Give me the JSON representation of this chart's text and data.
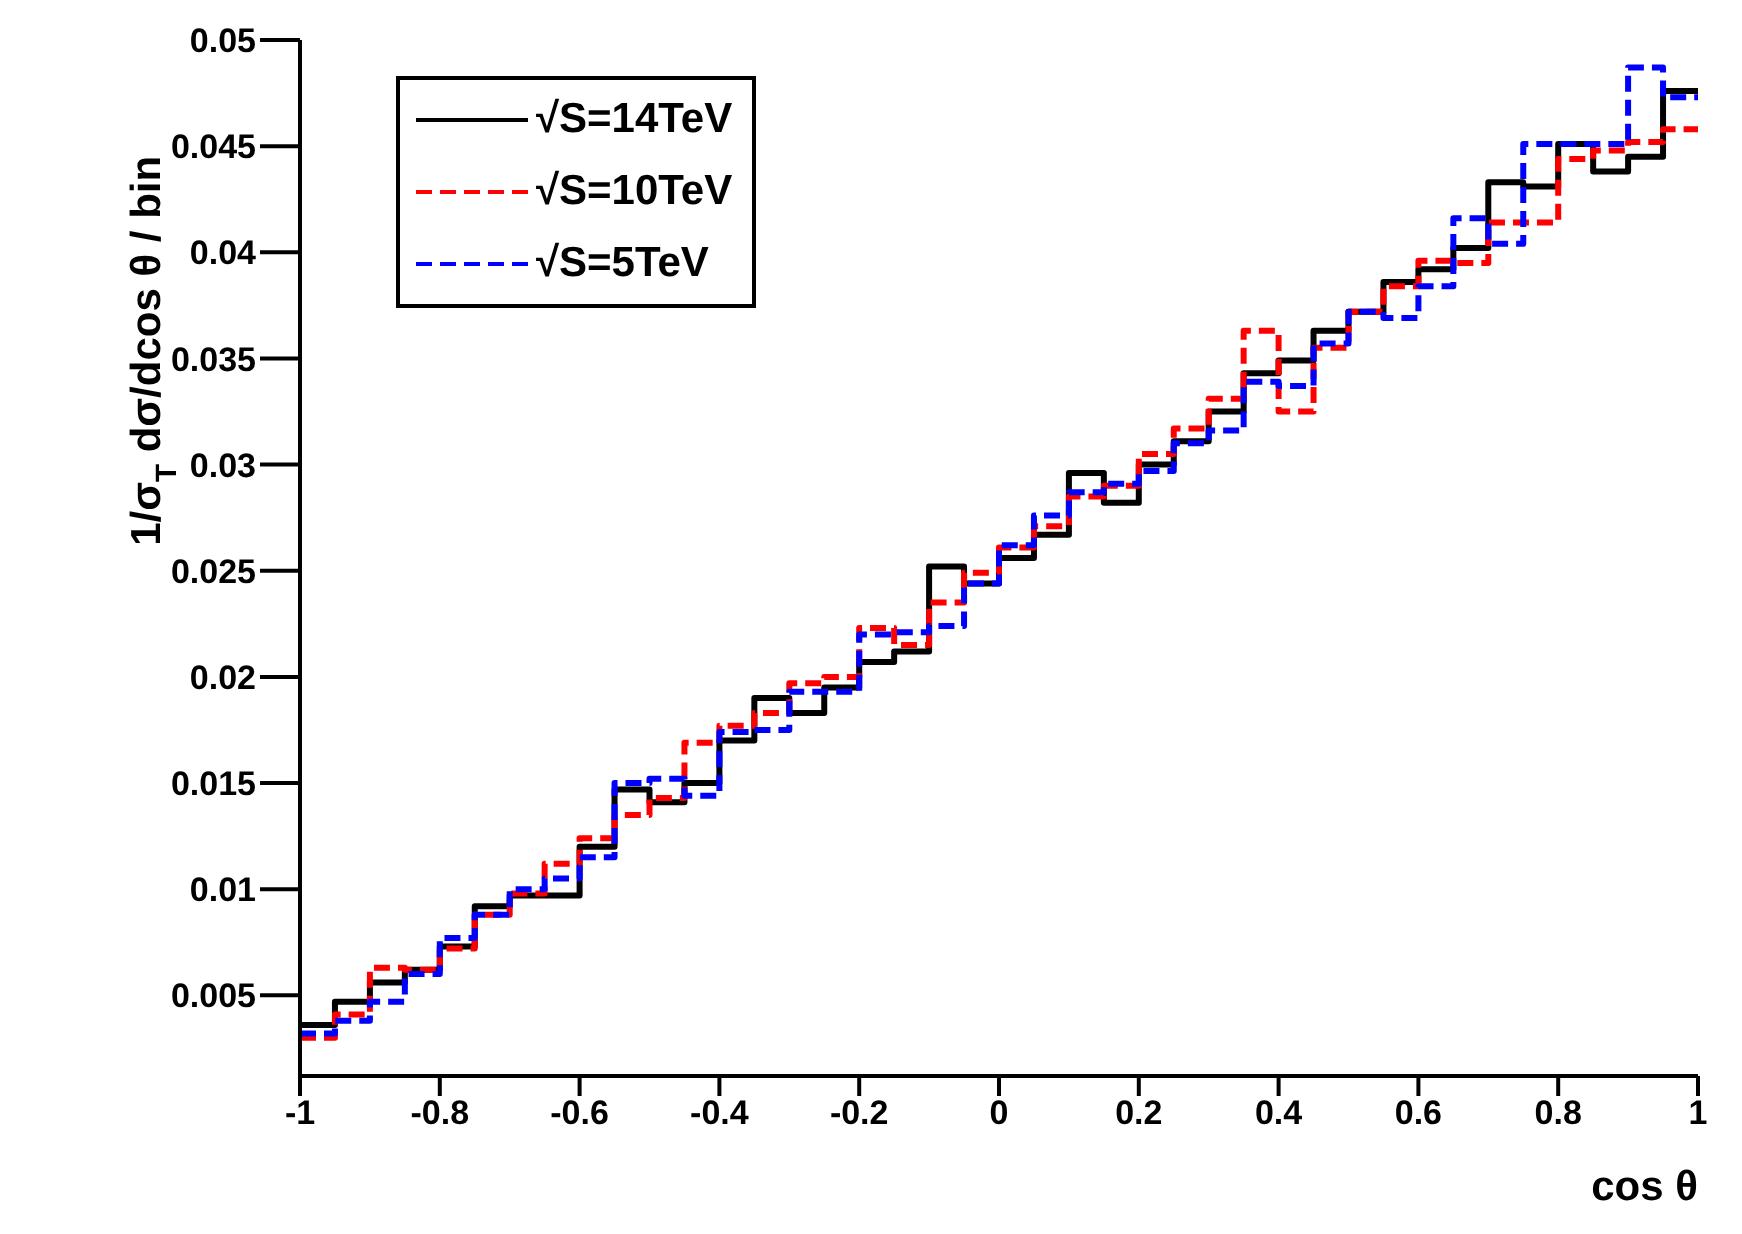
{
  "chart_data": {
    "type": "histogram",
    "xlabel": "cos θ",
    "ylabel": "1/σ$_{T}$ dσ/dcos θ / bin",
    "bins": [
      -1,
      -0.95,
      -0.9,
      -0.85,
      -0.8,
      -0.75,
      -0.7,
      -0.65,
      -0.6,
      -0.55,
      -0.5,
      -0.45,
      -0.4,
      -0.35,
      -0.3,
      -0.25,
      -0.2,
      -0.15,
      -0.1,
      -0.05,
      0,
      0.05,
      0.1,
      0.15,
      0.2,
      0.25,
      0.3,
      0.35,
      0.4,
      0.45,
      0.5,
      0.55,
      0.6,
      0.65,
      0.7,
      0.75,
      0.8,
      0.85,
      0.9,
      0.95,
      1
    ],
    "series": [
      {
        "name": "√S=14TeV",
        "color": "#000000",
        "line_style": "solid",
        "values": [
          0.0036,
          0.0047,
          0.0056,
          0.0062,
          0.0073,
          0.0092,
          0.0097,
          0.0097,
          0.012,
          0.0147,
          0.0141,
          0.015,
          0.017,
          0.019,
          0.0183,
          0.0195,
          0.0207,
          0.0212,
          0.0252,
          0.0244,
          0.0256,
          0.0267,
          0.0296,
          0.0282,
          0.03,
          0.0311,
          0.0325,
          0.0343,
          0.0349,
          0.0363,
          0.0372,
          0.0386,
          0.0392,
          0.0402,
          0.0433,
          0.0431,
          0.0451,
          0.0438,
          0.0445,
          0.0476
        ]
      },
      {
        "name": "√S=10TeV",
        "color": "#ff0000",
        "line_style": "dashed",
        "values": [
          0.003,
          0.0041,
          0.0063,
          0.0062,
          0.0072,
          0.0088,
          0.0098,
          0.0112,
          0.0124,
          0.0135,
          0.0143,
          0.0169,
          0.0177,
          0.0183,
          0.0197,
          0.02,
          0.0223,
          0.0215,
          0.0235,
          0.0249,
          0.0261,
          0.0271,
          0.0285,
          0.029,
          0.0305,
          0.0317,
          0.0331,
          0.0363,
          0.0325,
          0.0355,
          0.0372,
          0.0384,
          0.0396,
          0.0395,
          0.0414,
          0.0414,
          0.0444,
          0.0448,
          0.0452,
          0.0458
        ]
      },
      {
        "name": "√S=5TeV",
        "color": "#0000ff",
        "line_style": "dashed",
        "values": [
          0.0032,
          0.0038,
          0.0047,
          0.006,
          0.0077,
          0.0088,
          0.01,
          0.0105,
          0.0115,
          0.015,
          0.0152,
          0.0144,
          0.0174,
          0.0175,
          0.0193,
          0.0193,
          0.022,
          0.0221,
          0.0224,
          0.0244,
          0.0262,
          0.0276,
          0.0287,
          0.0291,
          0.0297,
          0.031,
          0.0316,
          0.0339,
          0.0337,
          0.0357,
          0.0372,
          0.0369,
          0.0384,
          0.0416,
          0.0404,
          0.0451,
          0.0451,
          0.0451,
          0.0487,
          0.0473
        ]
      }
    ],
    "xlim": [
      -1,
      1
    ],
    "xticks": [
      -1,
      -0.8,
      -0.6,
      -0.4,
      -0.2,
      0,
      0.2,
      0.4,
      0.6,
      0.8,
      1
    ],
    "ylim": [
      0.0012,
      0.05
    ],
    "yticks": [
      0.005,
      0.01,
      0.015,
      0.02,
      0.025,
      0.03,
      0.035,
      0.04,
      0.045,
      0.05
    ],
    "grid": false,
    "legend": "top left",
    "marker": "none"
  }
}
